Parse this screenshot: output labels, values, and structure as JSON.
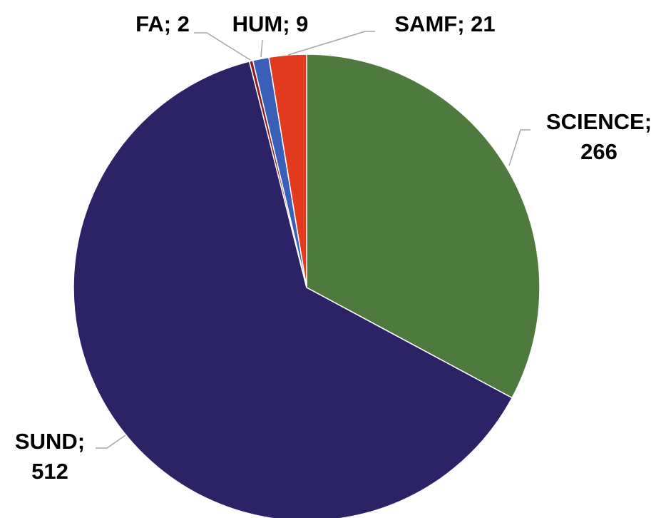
{
  "chart_data": {
    "type": "pie",
    "values": [
      266,
      512,
      2,
      9,
      21
    ],
    "value_labels": [
      "SCIENCE; 266",
      "SUND; 512",
      "FA; 2",
      "HUM; 9",
      "SAMF; 21"
    ],
    "colors": [
      "#4e7a3e",
      "#2b2366",
      "#8b1c1c",
      "#3a5fb8",
      "#e13a1f"
    ]
  }
}
